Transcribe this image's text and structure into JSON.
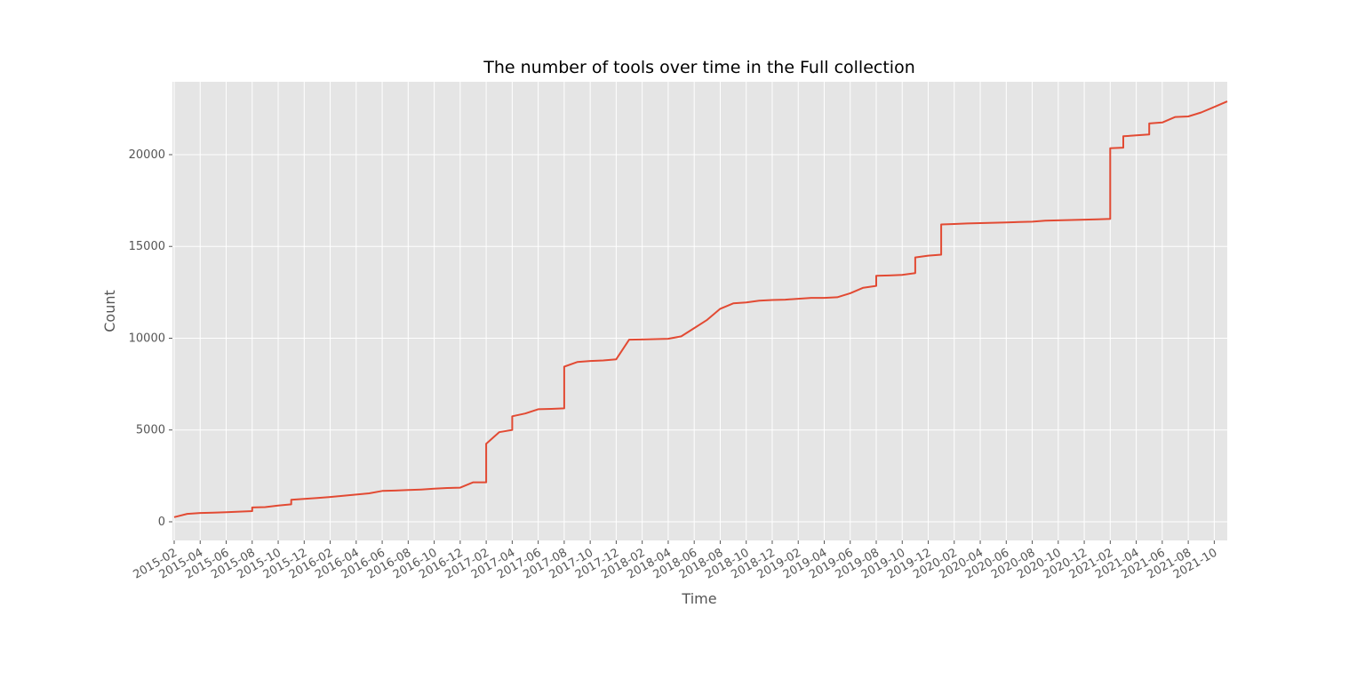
{
  "chart_data": {
    "type": "line",
    "title": "The number of tools over time in the Full collection",
    "xlabel": "Time",
    "ylabel": "Count",
    "x": [
      "2015-02",
      "2015-03",
      "2015-04",
      "2015-05",
      "2015-06",
      "2015-07",
      "2015-08",
      "2015-08",
      "2015-09",
      "2015-10",
      "2015-11",
      "2015-11",
      "2015-12",
      "2016-01",
      "2016-02",
      "2016-03",
      "2016-04",
      "2016-05",
      "2016-06",
      "2016-07",
      "2016-08",
      "2016-09",
      "2016-10",
      "2016-11",
      "2016-12",
      "2017-01",
      "2017-02",
      "2017-02",
      "2017-03",
      "2017-04",
      "2017-04",
      "2017-05",
      "2017-06",
      "2017-07",
      "2017-08",
      "2017-08",
      "2017-09",
      "2017-10",
      "2017-11",
      "2017-12",
      "2018-01",
      "2018-02",
      "2018-03",
      "2018-04",
      "2018-05",
      "2018-06",
      "2018-07",
      "2018-08",
      "2018-09",
      "2018-10",
      "2018-11",
      "2018-12",
      "2019-01",
      "2019-02",
      "2019-03",
      "2019-04",
      "2019-05",
      "2019-06",
      "2019-07",
      "2019-08",
      "2019-08",
      "2019-09",
      "2019-10",
      "2019-11",
      "2019-11",
      "2019-12",
      "2020-01",
      "2020-01",
      "2020-02",
      "2020-03",
      "2020-04",
      "2020-05",
      "2020-06",
      "2020-07",
      "2020-08",
      "2020-09",
      "2020-10",
      "2020-11",
      "2020-12",
      "2021-01",
      "2021-02",
      "2021-02",
      "2021-03",
      "2021-03",
      "2021-04",
      "2021-05",
      "2021-05",
      "2021-06",
      "2021-07",
      "2021-08",
      "2021-09",
      "2021-10",
      "2021-11"
    ],
    "series": [
      {
        "name": "Count",
        "color": "#e24a33",
        "values": [
          250,
          430,
          480,
          500,
          520,
          550,
          580,
          780,
          800,
          880,
          950,
          1200,
          1250,
          1300,
          1350,
          1420,
          1480,
          1550,
          1680,
          1700,
          1730,
          1760,
          1800,
          1840,
          1860,
          2150,
          2150,
          4250,
          4880,
          5000,
          5750,
          5900,
          6130,
          6150,
          6180,
          8450,
          8700,
          8760,
          8790,
          8850,
          9920,
          9930,
          9950,
          9970,
          10100,
          10550,
          11000,
          11600,
          11900,
          11950,
          12050,
          12080,
          12100,
          12150,
          12200,
          12200,
          12230,
          12450,
          12750,
          12850,
          13400,
          13420,
          13450,
          13550,
          14400,
          14500,
          14550,
          16200,
          16220,
          16250,
          16270,
          16290,
          16310,
          16330,
          16350,
          16400,
          16420,
          16440,
          16460,
          16480,
          16500,
          20350,
          20380,
          21000,
          21050,
          21100,
          21700,
          21750,
          22050,
          22080,
          22300,
          22600,
          22900
        ]
      }
    ],
    "xlim": [
      "2015-02",
      "2021-11"
    ],
    "xticks": [
      "2015-02",
      "2015-04",
      "2015-06",
      "2015-08",
      "2015-10",
      "2015-12",
      "2016-02",
      "2016-04",
      "2016-06",
      "2016-08",
      "2016-10",
      "2016-12",
      "2017-02",
      "2017-04",
      "2017-06",
      "2017-08",
      "2017-10",
      "2017-12",
      "2018-02",
      "2018-04",
      "2018-06",
      "2018-08",
      "2018-10",
      "2018-12",
      "2019-02",
      "2019-04",
      "2019-06",
      "2019-08",
      "2019-10",
      "2019-12",
      "2020-02",
      "2020-04",
      "2020-06",
      "2020-08",
      "2020-10",
      "2020-12",
      "2021-02",
      "2021-04",
      "2021-06",
      "2021-08",
      "2021-10"
    ],
    "ylim": [
      -1017,
      23970
    ],
    "yticks": [
      0,
      5000,
      10000,
      15000,
      20000
    ],
    "grid": true
  }
}
